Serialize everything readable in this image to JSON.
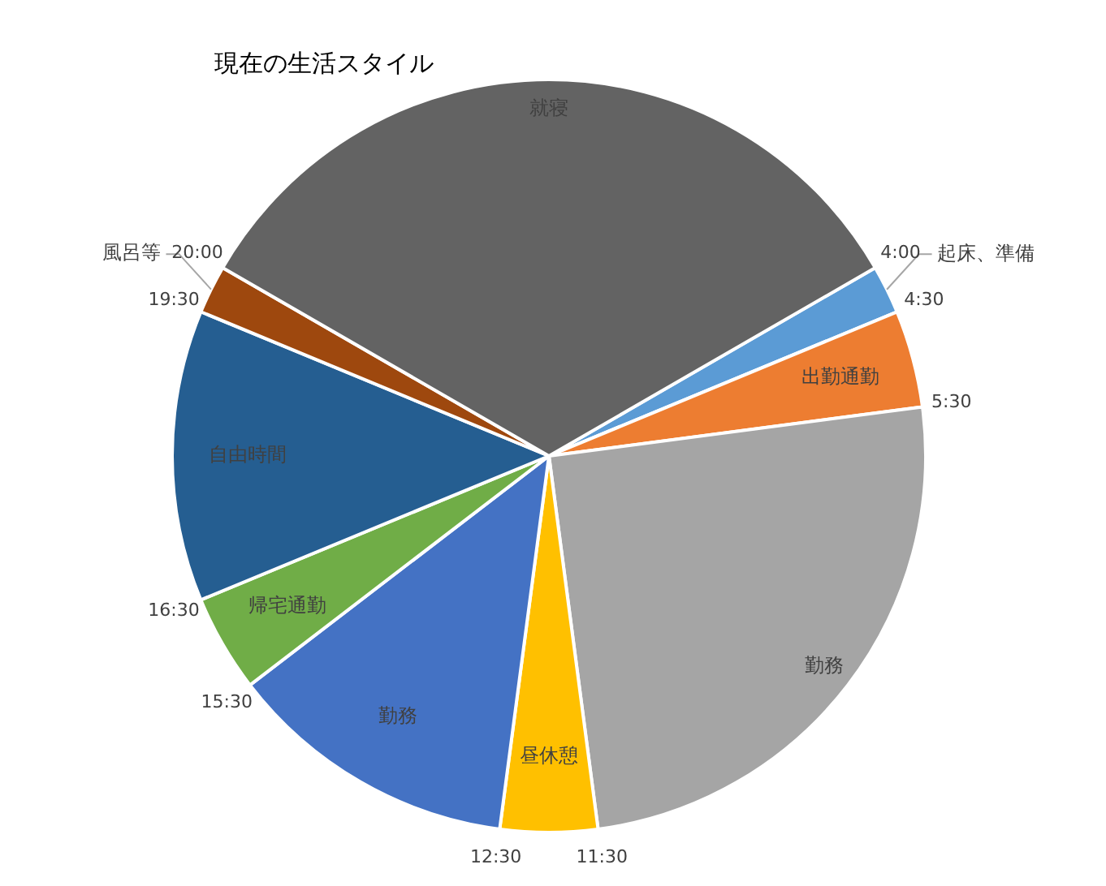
{
  "chart_data": {
    "type": "pie",
    "title": "現在の生活スタイル",
    "categories": [
      "起床、準備",
      "出勤通勤",
      "勤務",
      "昼休憩",
      "勤務",
      "帰宅通勤",
      "自由時間",
      "風呂等",
      "就寝"
    ],
    "values": [
      2.08,
      4.17,
      25,
      4.17,
      12.5,
      4.17,
      12.5,
      2.08,
      33.33
    ],
    "colors": [
      "#5b9bd5",
      "#ed7d31",
      "#a5a5a5",
      "#ffc000",
      "#4472c4",
      "#70ad47",
      "#255e91",
      "#9e480e",
      "#636363"
    ],
    "annotations": [
      "4:00",
      "4:30",
      "5:30",
      "11:30",
      "12:30",
      "15:30",
      "16:30",
      "19:30",
      "20:00"
    ],
    "legend": false
  }
}
